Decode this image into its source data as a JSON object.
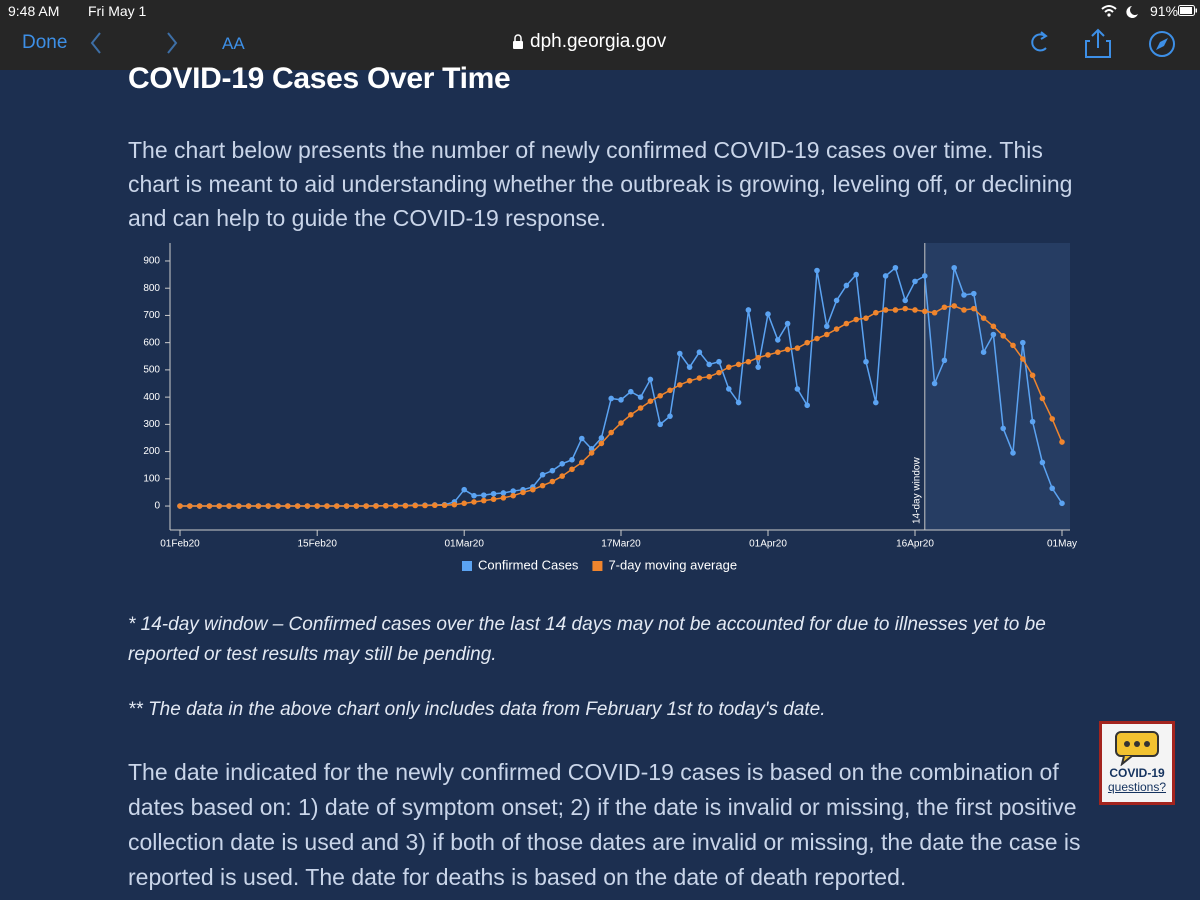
{
  "status_bar": {
    "time": "9:48 AM",
    "date": "Fri May 1",
    "battery": "91%"
  },
  "browser": {
    "done": "Done",
    "text_size": "AA",
    "url": "dph.georgia.gov"
  },
  "heading": "COVID-19 Cases Over Time",
  "intro": "The chart below presents the number of newly confirmed COVID-19 cases over time. This chart is meant to aid understanding whether the outbreak is growing, leveling off, or declining and can help to guide the COVID-19 response.",
  "chart_data": {
    "type": "line",
    "x": [
      "2020-02-01",
      "2020-02-02",
      "2020-02-03",
      "2020-02-04",
      "2020-02-05",
      "2020-02-06",
      "2020-02-07",
      "2020-02-08",
      "2020-02-09",
      "2020-02-10",
      "2020-02-11",
      "2020-02-12",
      "2020-02-13",
      "2020-02-14",
      "2020-02-15",
      "2020-02-16",
      "2020-02-17",
      "2020-02-18",
      "2020-02-19",
      "2020-02-20",
      "2020-02-21",
      "2020-02-22",
      "2020-02-23",
      "2020-02-24",
      "2020-02-25",
      "2020-02-26",
      "2020-02-27",
      "2020-02-28",
      "2020-02-29",
      "2020-03-01",
      "2020-03-02",
      "2020-03-03",
      "2020-03-04",
      "2020-03-05",
      "2020-03-06",
      "2020-03-07",
      "2020-03-08",
      "2020-03-09",
      "2020-03-10",
      "2020-03-11",
      "2020-03-12",
      "2020-03-13",
      "2020-03-14",
      "2020-03-15",
      "2020-03-16",
      "2020-03-17",
      "2020-03-18",
      "2020-03-19",
      "2020-03-20",
      "2020-03-21",
      "2020-03-22",
      "2020-03-23",
      "2020-03-24",
      "2020-03-25",
      "2020-03-26",
      "2020-03-27",
      "2020-03-28",
      "2020-03-29",
      "2020-03-30",
      "2020-03-31",
      "2020-04-01",
      "2020-04-02",
      "2020-04-03",
      "2020-04-04",
      "2020-04-05",
      "2020-04-06",
      "2020-04-07",
      "2020-04-08",
      "2020-04-09",
      "2020-04-10",
      "2020-04-11",
      "2020-04-12",
      "2020-04-13",
      "2020-04-14",
      "2020-04-15",
      "2020-04-16",
      "2020-04-17",
      "2020-04-18",
      "2020-04-19",
      "2020-04-20",
      "2020-04-21",
      "2020-04-22",
      "2020-04-23",
      "2020-04-24",
      "2020-04-25",
      "2020-04-26",
      "2020-04-27",
      "2020-04-28",
      "2020-04-29",
      "2020-04-30",
      "2020-05-01"
    ],
    "series": [
      {
        "name": "Confirmed Cases",
        "color": "#5ba3f2",
        "values": [
          0,
          0,
          0,
          0,
          0,
          0,
          0,
          0,
          0,
          0,
          0,
          0,
          0,
          0,
          0,
          0,
          0,
          0,
          0,
          0,
          1,
          1,
          2,
          2,
          3,
          3,
          4,
          5,
          15,
          60,
          38,
          40,
          45,
          48,
          55,
          60,
          70,
          115,
          130,
          155,
          170,
          248,
          210,
          250,
          395,
          390,
          420,
          400,
          465,
          300,
          330,
          560,
          510,
          565,
          520,
          530,
          430,
          380,
          720,
          510,
          705,
          610,
          670,
          430,
          370,
          865,
          660,
          755,
          810,
          850,
          530,
          380,
          845,
          875,
          755,
          825,
          845,
          450,
          535,
          875,
          775,
          780,
          565,
          630,
          285,
          195,
          600,
          310,
          160,
          65,
          10
        ]
      },
      {
        "name": "7-day moving average",
        "color": "#f0852d",
        "values": [
          0,
          0,
          0,
          0,
          0,
          0,
          0,
          0,
          0,
          0,
          0,
          0,
          0,
          0,
          0,
          0,
          0,
          0,
          0,
          0,
          0,
          1,
          1,
          1,
          2,
          2,
          3,
          3,
          5,
          10,
          15,
          20,
          25,
          30,
          38,
          50,
          60,
          75,
          90,
          110,
          135,
          160,
          195,
          230,
          270,
          305,
          335,
          360,
          385,
          405,
          425,
          445,
          460,
          470,
          475,
          490,
          510,
          520,
          530,
          545,
          555,
          565,
          575,
          580,
          600,
          615,
          630,
          650,
          670,
          685,
          690,
          710,
          720,
          720,
          725,
          720,
          715,
          710,
          730,
          735,
          720,
          725,
          690,
          660,
          625,
          590,
          540,
          480,
          395,
          320,
          235
        ]
      }
    ],
    "xlim": [
      "2020-02-01",
      "2020-05-01"
    ],
    "xticks": [
      {
        "value": "2020-02-01",
        "label": "01Feb20"
      },
      {
        "value": "2020-02-15",
        "label": "15Feb20"
      },
      {
        "value": "2020-03-01",
        "label": "01Mar20"
      },
      {
        "value": "2020-03-17",
        "label": "17Mar20"
      },
      {
        "value": "2020-04-01",
        "label": "01Apr20"
      },
      {
        "value": "2020-04-16",
        "label": "16Apr20"
      },
      {
        "value": "2020-05-01",
        "label": "01May"
      }
    ],
    "ylim": [
      -88,
      966
    ],
    "yticks": [
      0,
      100,
      200,
      300,
      400,
      500,
      600,
      700,
      800,
      900
    ],
    "window": {
      "start": "2020-04-17",
      "label": "14-day window"
    },
    "legend": "bottom"
  },
  "notes": [
    "* 14-day window – Confirmed cases over the last 14 days may not be accounted for due to illnesses yet to be reported or test results may still be pending.",
    "** The data in the above chart only includes data from February 1st to today's date."
  ],
  "body": "The date indicated for the newly confirmed COVID-19 cases is based on the combination of dates based on: 1) date of symptom onset; 2) if the date is invalid or missing, the first positive collection date is used and 3) if both of those dates are invalid or missing, the date the case is reported is used. The date for deaths is based on the date of death reported.",
  "badge": {
    "line1": "COVID-19",
    "line2": "questions?"
  }
}
